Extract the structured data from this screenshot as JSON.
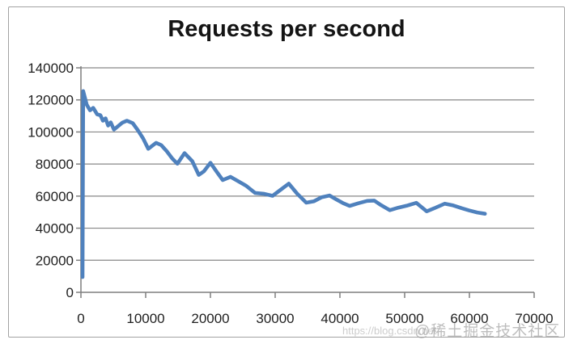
{
  "window": {
    "background": "#ffffff",
    "frame_border_color": "#a3a3a3"
  },
  "chart_data": {
    "type": "line",
    "title": "Requests per second",
    "xlabel": "",
    "ylabel": "",
    "xlim": [
      0,
      70000
    ],
    "ylim": [
      0,
      140000
    ],
    "x_ticks": [
      0,
      10000,
      20000,
      30000,
      40000,
      50000,
      60000,
      70000
    ],
    "y_ticks": [
      0,
      20000,
      40000,
      60000,
      80000,
      100000,
      120000,
      140000
    ],
    "grid": "horizontal",
    "grid_color": "#878787",
    "axis_color": "#7f7f7f",
    "tick_label_color": "#1f1f1f",
    "legend": "none",
    "series": [
      {
        "name": "Requests per second",
        "color": "#4F81BD",
        "points": [
          [
            250,
            9500
          ],
          [
            350,
            125500
          ],
          [
            900,
            117000
          ],
          [
            1400,
            113500
          ],
          [
            1900,
            115000
          ],
          [
            2500,
            111000
          ],
          [
            3000,
            110500
          ],
          [
            3400,
            107000
          ],
          [
            3800,
            108500
          ],
          [
            4200,
            104000
          ],
          [
            4600,
            106000
          ],
          [
            5100,
            101500
          ],
          [
            5700,
            103500
          ],
          [
            6400,
            105800
          ],
          [
            7100,
            107000
          ],
          [
            8000,
            105500
          ],
          [
            8800,
            101000
          ],
          [
            9600,
            96000
          ],
          [
            10400,
            89500
          ],
          [
            11600,
            93200
          ],
          [
            12400,
            91800
          ],
          [
            13300,
            87800
          ],
          [
            14100,
            83500
          ],
          [
            14900,
            80200
          ],
          [
            16000,
            86800
          ],
          [
            17200,
            81800
          ],
          [
            18200,
            73200
          ],
          [
            19000,
            75500
          ],
          [
            20000,
            80800
          ],
          [
            21000,
            75000
          ],
          [
            21900,
            70000
          ],
          [
            23100,
            72000
          ],
          [
            24200,
            69500
          ],
          [
            25500,
            66500
          ],
          [
            26900,
            62000
          ],
          [
            28200,
            61500
          ],
          [
            29600,
            60200
          ],
          [
            30700,
            63500
          ],
          [
            32100,
            67800
          ],
          [
            33400,
            61500
          ],
          [
            34800,
            55900
          ],
          [
            36000,
            56800
          ],
          [
            37200,
            59300
          ],
          [
            38400,
            60400
          ],
          [
            39500,
            57800
          ],
          [
            40500,
            55600
          ],
          [
            41500,
            53900
          ],
          [
            42800,
            55500
          ],
          [
            44200,
            57000
          ],
          [
            45300,
            57200
          ],
          [
            46300,
            54500
          ],
          [
            47700,
            51200
          ],
          [
            49000,
            52800
          ],
          [
            50300,
            54000
          ],
          [
            51800,
            55800
          ],
          [
            53400,
            50500
          ],
          [
            54600,
            52500
          ],
          [
            56200,
            55300
          ],
          [
            57500,
            54200
          ],
          [
            58800,
            52500
          ],
          [
            60000,
            51000
          ],
          [
            61200,
            49800
          ],
          [
            62400,
            49000
          ]
        ]
      }
    ]
  },
  "watermark": {
    "url_text": "https://blog.csdn.net",
    "community_text": "@稀土掘金技术社区"
  }
}
